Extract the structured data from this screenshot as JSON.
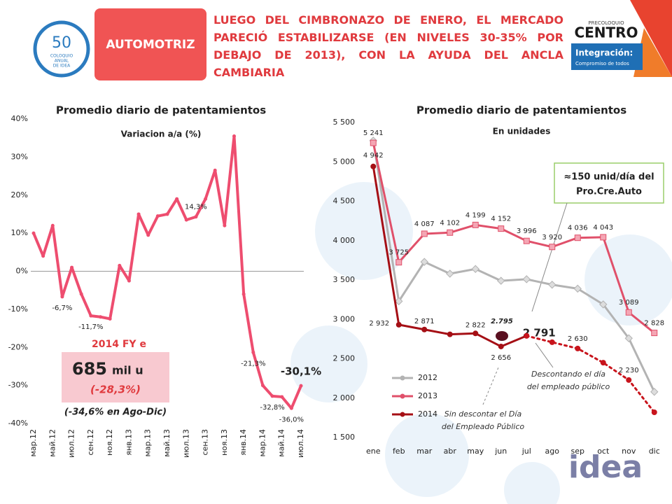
{
  "header": {
    "logo_left": [
      "50",
      "COLOQUIO",
      "ANUAL",
      "DE IDEA"
    ],
    "section": "AUTOMOTRIZ",
    "title": "LUEGO DEL CIMBRONAZO DE ENERO, EL MERCADO PARECIÓ ESTABILIZARSE (EN NIVELES 30-35% POR DEBAJO DE 2013), CON LA AYUDA DEL ANCLA CAMBIARIA",
    "logo_right": [
      "PRECOLOQUIO",
      "CENTRO",
      "Integración:",
      "Compromiso de todos"
    ]
  },
  "chart_data": [
    {
      "type": "line",
      "title": "Promedio diario de patentamientos",
      "annotations": [
        "Variacion a/a (%)",
        "2014 FY e",
        "685",
        "mil u",
        "(-28,3%)",
        "(-34,6% en Ago-Dic)"
      ],
      "categories": [
        "мар.12",
        null,
        "май.12",
        null,
        "июл.12",
        null,
        "сен.12",
        null,
        "ноя.12",
        null,
        "янв.13",
        null,
        "мар.13",
        null,
        "май.13",
        null,
        "июл.13",
        null,
        "сен.13",
        null,
        "ноя.13",
        null,
        "янв.14",
        null,
        "мар.14",
        null,
        "май.14",
        null,
        "июл.14"
      ],
      "series": [
        {
          "color": "#ee4d6f",
          "values": [
            10,
            4,
            12,
            -6.7,
            1,
            -6,
            -11.7,
            -12,
            -12.5,
            1.5,
            -2.5,
            15,
            9.5,
            14.5,
            15,
            19,
            13.5,
            14.3,
            19,
            26.5,
            12,
            35.5,
            -6,
            -21.3,
            -30,
            -32.8,
            -33,
            -36,
            -30.1
          ],
          "value_labels": [
            null,
            null,
            null,
            "-6,7%",
            null,
            null,
            "-11,7%",
            null,
            null,
            null,
            null,
            null,
            null,
            null,
            null,
            null,
            null,
            "14,3%",
            null,
            null,
            null,
            null,
            null,
            "-21,3%",
            null,
            "-32,8%",
            null,
            "-36,0%",
            "-30,1%"
          ]
        }
      ],
      "ylim": [
        -40,
        40
      ],
      "yticks": [
        {
          "value": -40,
          "label": "-40%"
        },
        {
          "value": -30,
          "label": "-30%"
        },
        {
          "value": -20,
          "label": "-20%"
        },
        {
          "value": -10,
          "label": "-10%"
        },
        {
          "value": 0,
          "label": "0%"
        },
        {
          "value": 10,
          "label": "10%"
        },
        {
          "value": 20,
          "label": "20%"
        },
        {
          "value": 30,
          "label": "30%"
        },
        {
          "value": 40,
          "label": "40%"
        }
      ],
      "grid": false
    },
    {
      "type": "line",
      "title": "Promedio diario de patentamientos",
      "annotations": [
        "En unidades",
        "≈150 unid/día del",
        "Pro.Cre.Auto",
        "2.795",
        "Descontando el día",
        "del empleado público",
        "Sin descontar el Día",
        "del Empleado Público"
      ],
      "categories": [
        "ene",
        "feb",
        "mar",
        "abr",
        "may",
        "jun",
        "jul",
        "ago",
        "sep",
        "oct",
        "nov",
        "dic"
      ],
      "series": [
        {
          "name": "2012",
          "color": "#b3b3b3",
          "marker": "diamond",
          "values": [
            5270,
            3230,
            3730,
            3580,
            3640,
            3490,
            3510,
            3440,
            3390,
            3190,
            2760,
            2080
          ]
        },
        {
          "name": "2013",
          "color": "#e0506a",
          "marker": "square",
          "values": [
            5241,
            3725,
            4087,
            4102,
            4199,
            4152,
            3996,
            3920,
            4036,
            4043,
            3089,
            2828
          ],
          "value_labels": [
            "5 241",
            "3 725",
            "4 087",
            "4 102",
            "4 199",
            "4 152",
            "3 996",
            "3 920",
            "4 036",
            "4 043",
            "3 089",
            "2 828"
          ]
        },
        {
          "name": "2014",
          "color": "#a50f15",
          "marker": "circle",
          "values": [
            4942,
            2932,
            2871,
            2810,
            2822,
            2656,
            2791,
            null,
            null,
            null,
            null,
            null
          ],
          "value_labels": [
            "4 942",
            "2 932",
            "2 871",
            null,
            "2 822",
            "2 656",
            "2 791",
            null,
            null,
            null,
            null,
            null
          ]
        },
        {
          "color": "#c8141c",
          "marker": "circle",
          "dashed": true,
          "values": [
            null,
            null,
            null,
            null,
            null,
            null,
            2791,
            2710,
            2630,
            2450,
            2230,
            1820
          ],
          "value_labels": [
            null,
            null,
            null,
            null,
            null,
            null,
            null,
            null,
            "2 630",
            null,
            "2 230",
            null
          ]
        }
      ],
      "ylim": [
        1500,
        5500
      ],
      "yticks": [
        {
          "value": 1500,
          "label": "1 500"
        },
        {
          "value": 2000,
          "label": "2 000"
        },
        {
          "value": 2500,
          "label": "2 500"
        },
        {
          "value": 3000,
          "label": "3 000"
        },
        {
          "value": 3500,
          "label": "3 500"
        },
        {
          "value": 4000,
          "label": "4 000"
        },
        {
          "value": 4500,
          "label": "4 500"
        },
        {
          "value": 5000,
          "label": "5 000"
        },
        {
          "value": 5500,
          "label": "5 500"
        }
      ],
      "grid": false,
      "legend": "lower left"
    }
  ],
  "footer": {
    "logo": "idea"
  }
}
